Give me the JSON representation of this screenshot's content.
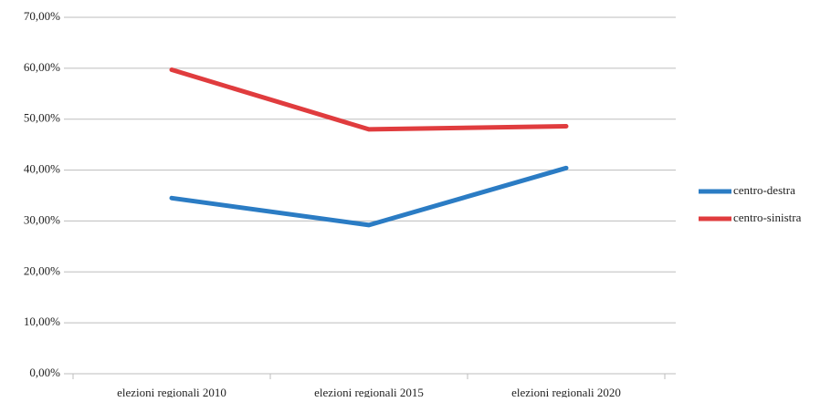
{
  "chart_data": {
    "type": "line",
    "categories": [
      "elezioni regionali 2010",
      "elezioni regionali 2015",
      "elezioni regionali 2020"
    ],
    "series": [
      {
        "name": "centro-destra",
        "color": "#2b7cc4",
        "values": [
          34.5,
          29.2,
          40.4
        ]
      },
      {
        "name": "centro-sinistra",
        "color": "#e03c3e",
        "values": [
          59.7,
          48.0,
          48.6
        ]
      }
    ],
    "ylim": [
      0,
      70
    ],
    "yticks": [
      {
        "value": 0,
        "label": "0,00%"
      },
      {
        "value": 10,
        "label": "10,00%"
      },
      {
        "value": 20,
        "label": "20,00%"
      },
      {
        "value": 30,
        "label": "30,00%"
      },
      {
        "value": 40,
        "label": "40,00%"
      },
      {
        "value": 50,
        "label": "50,00%"
      },
      {
        "value": 60,
        "label": "60,00%"
      },
      {
        "value": 70,
        "label": "70,00%"
      }
    ],
    "grid": true,
    "legend": "right"
  }
}
